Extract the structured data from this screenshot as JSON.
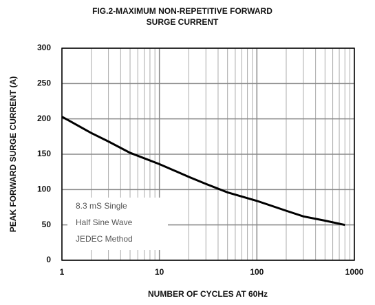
{
  "chart_data": {
    "type": "line",
    "title": [
      "FIG.2-MAXIMUM NON-REPETITIVE FORWARD",
      "SURGE CURRENT"
    ],
    "xlabel": "NUMBER OF CYCLES AT 60Hz",
    "ylabel": "PEAK FORWARD SURGE CURRENT (A)",
    "annotation": [
      "8.3 mS Single",
      "Half Sine Wave",
      "JEDEC Method"
    ],
    "xscale": "log",
    "xlim": [
      1,
      1000
    ],
    "xticks": [
      1,
      10,
      100,
      1000
    ],
    "xminorticks": [
      2,
      3,
      4,
      5,
      6,
      7,
      8,
      9,
      20,
      30,
      40,
      50,
      60,
      70,
      80,
      90,
      200,
      300,
      400,
      500,
      600,
      700,
      800,
      900
    ],
    "ylim": [
      0,
      300
    ],
    "yticks": [
      0,
      50,
      100,
      150,
      200,
      250,
      300
    ],
    "grid": true,
    "series": [
      {
        "color": "#000000",
        "x": [
          1,
          1.2,
          2,
          3,
          5,
          10,
          20,
          30,
          50,
          100,
          200,
          300,
          500,
          800
        ],
        "values": [
          203,
          197,
          180,
          168,
          152,
          136,
          118,
          108,
          96,
          84,
          70,
          62,
          56,
          50
        ]
      }
    ]
  }
}
